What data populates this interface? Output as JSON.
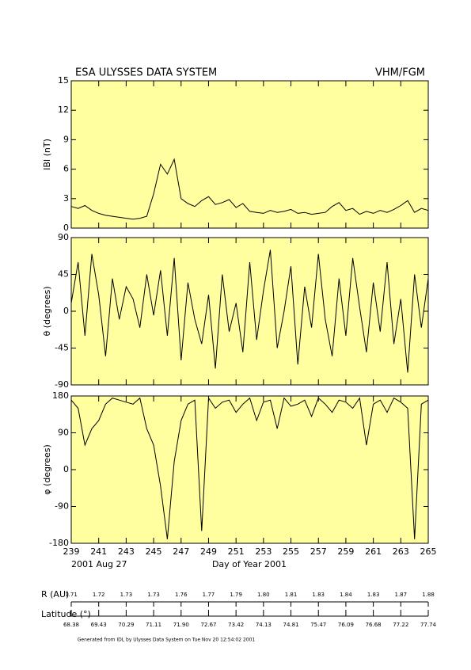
{
  "header": {
    "title": "ESA ULYSSES DATA SYSTEM",
    "instrument": "VHM/FGM"
  },
  "chart_data": [
    {
      "type": "line",
      "ylabel": "IBI (nT)",
      "color": "#000000",
      "xlim": [
        239,
        265
      ],
      "ylim": [
        0,
        15
      ],
      "yticks": [
        0,
        3,
        6,
        9,
        12,
        15
      ],
      "x": [
        239,
        239.5,
        240,
        240.5,
        241,
        241.5,
        242,
        242.5,
        243,
        243.5,
        244,
        244.5,
        245,
        245.5,
        246,
        246.5,
        247,
        247.5,
        248,
        248.5,
        249,
        249.5,
        250,
        250.5,
        251,
        251.5,
        252,
        252.5,
        253,
        253.5,
        254,
        254.5,
        255,
        255.5,
        256,
        256.5,
        257,
        257.5,
        258,
        258.5,
        259,
        259.5,
        260,
        260.5,
        261,
        261.5,
        262,
        262.5,
        263,
        263.5,
        264,
        264.5,
        265
      ],
      "values": [
        2.2,
        2.0,
        2.3,
        1.8,
        1.5,
        1.3,
        1.2,
        1.1,
        1.0,
        0.9,
        1.0,
        1.2,
        3.5,
        6.5,
        5.5,
        7.0,
        3.0,
        2.5,
        2.2,
        2.8,
        3.2,
        2.4,
        2.6,
        2.9,
        2.1,
        2.5,
        1.7,
        1.6,
        1.5,
        1.8,
        1.6,
        1.7,
        1.9,
        1.5,
        1.6,
        1.4,
        1.5,
        1.6,
        2.2,
        2.6,
        1.8,
        2.0,
        1.4,
        1.7,
        1.5,
        1.8,
        1.6,
        1.9,
        2.3,
        2.8,
        1.6,
        2.0,
        1.8
      ]
    },
    {
      "type": "line",
      "ylabel": "θ (degrees)",
      "color": "#000000",
      "xlim": [
        239,
        265
      ],
      "ylim": [
        -90,
        90
      ],
      "yticks": [
        -90,
        -45,
        0,
        45,
        90
      ],
      "x": [
        239,
        239.5,
        240,
        240.5,
        241,
        241.5,
        242,
        242.5,
        243,
        243.5,
        244,
        244.5,
        245,
        245.5,
        246,
        246.5,
        247,
        247.5,
        248,
        248.5,
        249,
        249.5,
        250,
        250.5,
        251,
        251.5,
        252,
        252.5,
        253,
        253.5,
        254,
        254.5,
        255,
        255.5,
        256,
        256.5,
        257,
        257.5,
        258,
        258.5,
        259,
        259.5,
        260,
        260.5,
        261,
        261.5,
        262,
        262.5,
        263,
        263.5,
        264,
        264.5,
        265
      ],
      "values": [
        10,
        60,
        -30,
        70,
        20,
        -55,
        40,
        -10,
        30,
        15,
        -20,
        45,
        -5,
        50,
        -30,
        65,
        -60,
        35,
        -10,
        -40,
        20,
        -70,
        45,
        -25,
        10,
        -50,
        60,
        -35,
        25,
        75,
        -45,
        0,
        55,
        -65,
        30,
        -20,
        70,
        -10,
        -55,
        40,
        -30,
        65,
        5,
        -50,
        35,
        -25,
        60,
        -40,
        15,
        -75,
        45,
        -20,
        40
      ]
    },
    {
      "type": "line",
      "ylabel": "φ (degrees)",
      "color": "#000000",
      "xlim": [
        239,
        265
      ],
      "ylim": [
        -180,
        180
      ],
      "yticks": [
        -180,
        -90,
        0,
        90,
        180
      ],
      "xticks": [
        239,
        241,
        243,
        245,
        247,
        249,
        251,
        253,
        255,
        257,
        259,
        261,
        263,
        265
      ],
      "xlabel": "Day of Year 2001",
      "start_date": "2001 Aug 27",
      "x": [
        239,
        239.5,
        240,
        240.5,
        241,
        241.5,
        242,
        242.5,
        243,
        243.5,
        244,
        244.5,
        245,
        245.5,
        246,
        246.5,
        247,
        247.5,
        248,
        248.5,
        249,
        249.5,
        250,
        250.5,
        251,
        251.5,
        252,
        252.5,
        253,
        253.5,
        254,
        254.5,
        255,
        255.5,
        256,
        256.5,
        257,
        257.5,
        258,
        258.5,
        259,
        259.5,
        260,
        260.5,
        261,
        261.5,
        262,
        262.5,
        263,
        263.5,
        264,
        264.5,
        265
      ],
      "values": [
        170,
        150,
        60,
        100,
        120,
        160,
        175,
        170,
        165,
        160,
        175,
        100,
        60,
        -40,
        -170,
        20,
        120,
        160,
        170,
        -150,
        175,
        150,
        165,
        170,
        140,
        160,
        175,
        120,
        165,
        170,
        100,
        175,
        155,
        160,
        170,
        130,
        175,
        160,
        140,
        170,
        165,
        150,
        175,
        60,
        160,
        170,
        140,
        175,
        165,
        150,
        -170,
        160,
        170
      ]
    }
  ],
  "ephemeris": {
    "r_label": "R (AU)",
    "r_values": [
      "1.71",
      "1.72",
      "1.73",
      "1.73",
      "1.76",
      "1.77",
      "1.79",
      "1.80",
      "1.81",
      "1.83",
      "1.84",
      "1.83",
      "1.87",
      "1.88"
    ],
    "lat_label": "Latitude (°)",
    "lat_values": [
      "68.38",
      "69.43",
      "70.29",
      "71.11",
      "71.90",
      "72.67",
      "73.42",
      "74.13",
      "74.81",
      "75.47",
      "76.09",
      "76.68",
      "77.22",
      "77.74"
    ]
  },
  "footer": "Generated from IDL by Ulysses Data System on Tue Nov 20 12:54:02 2001"
}
